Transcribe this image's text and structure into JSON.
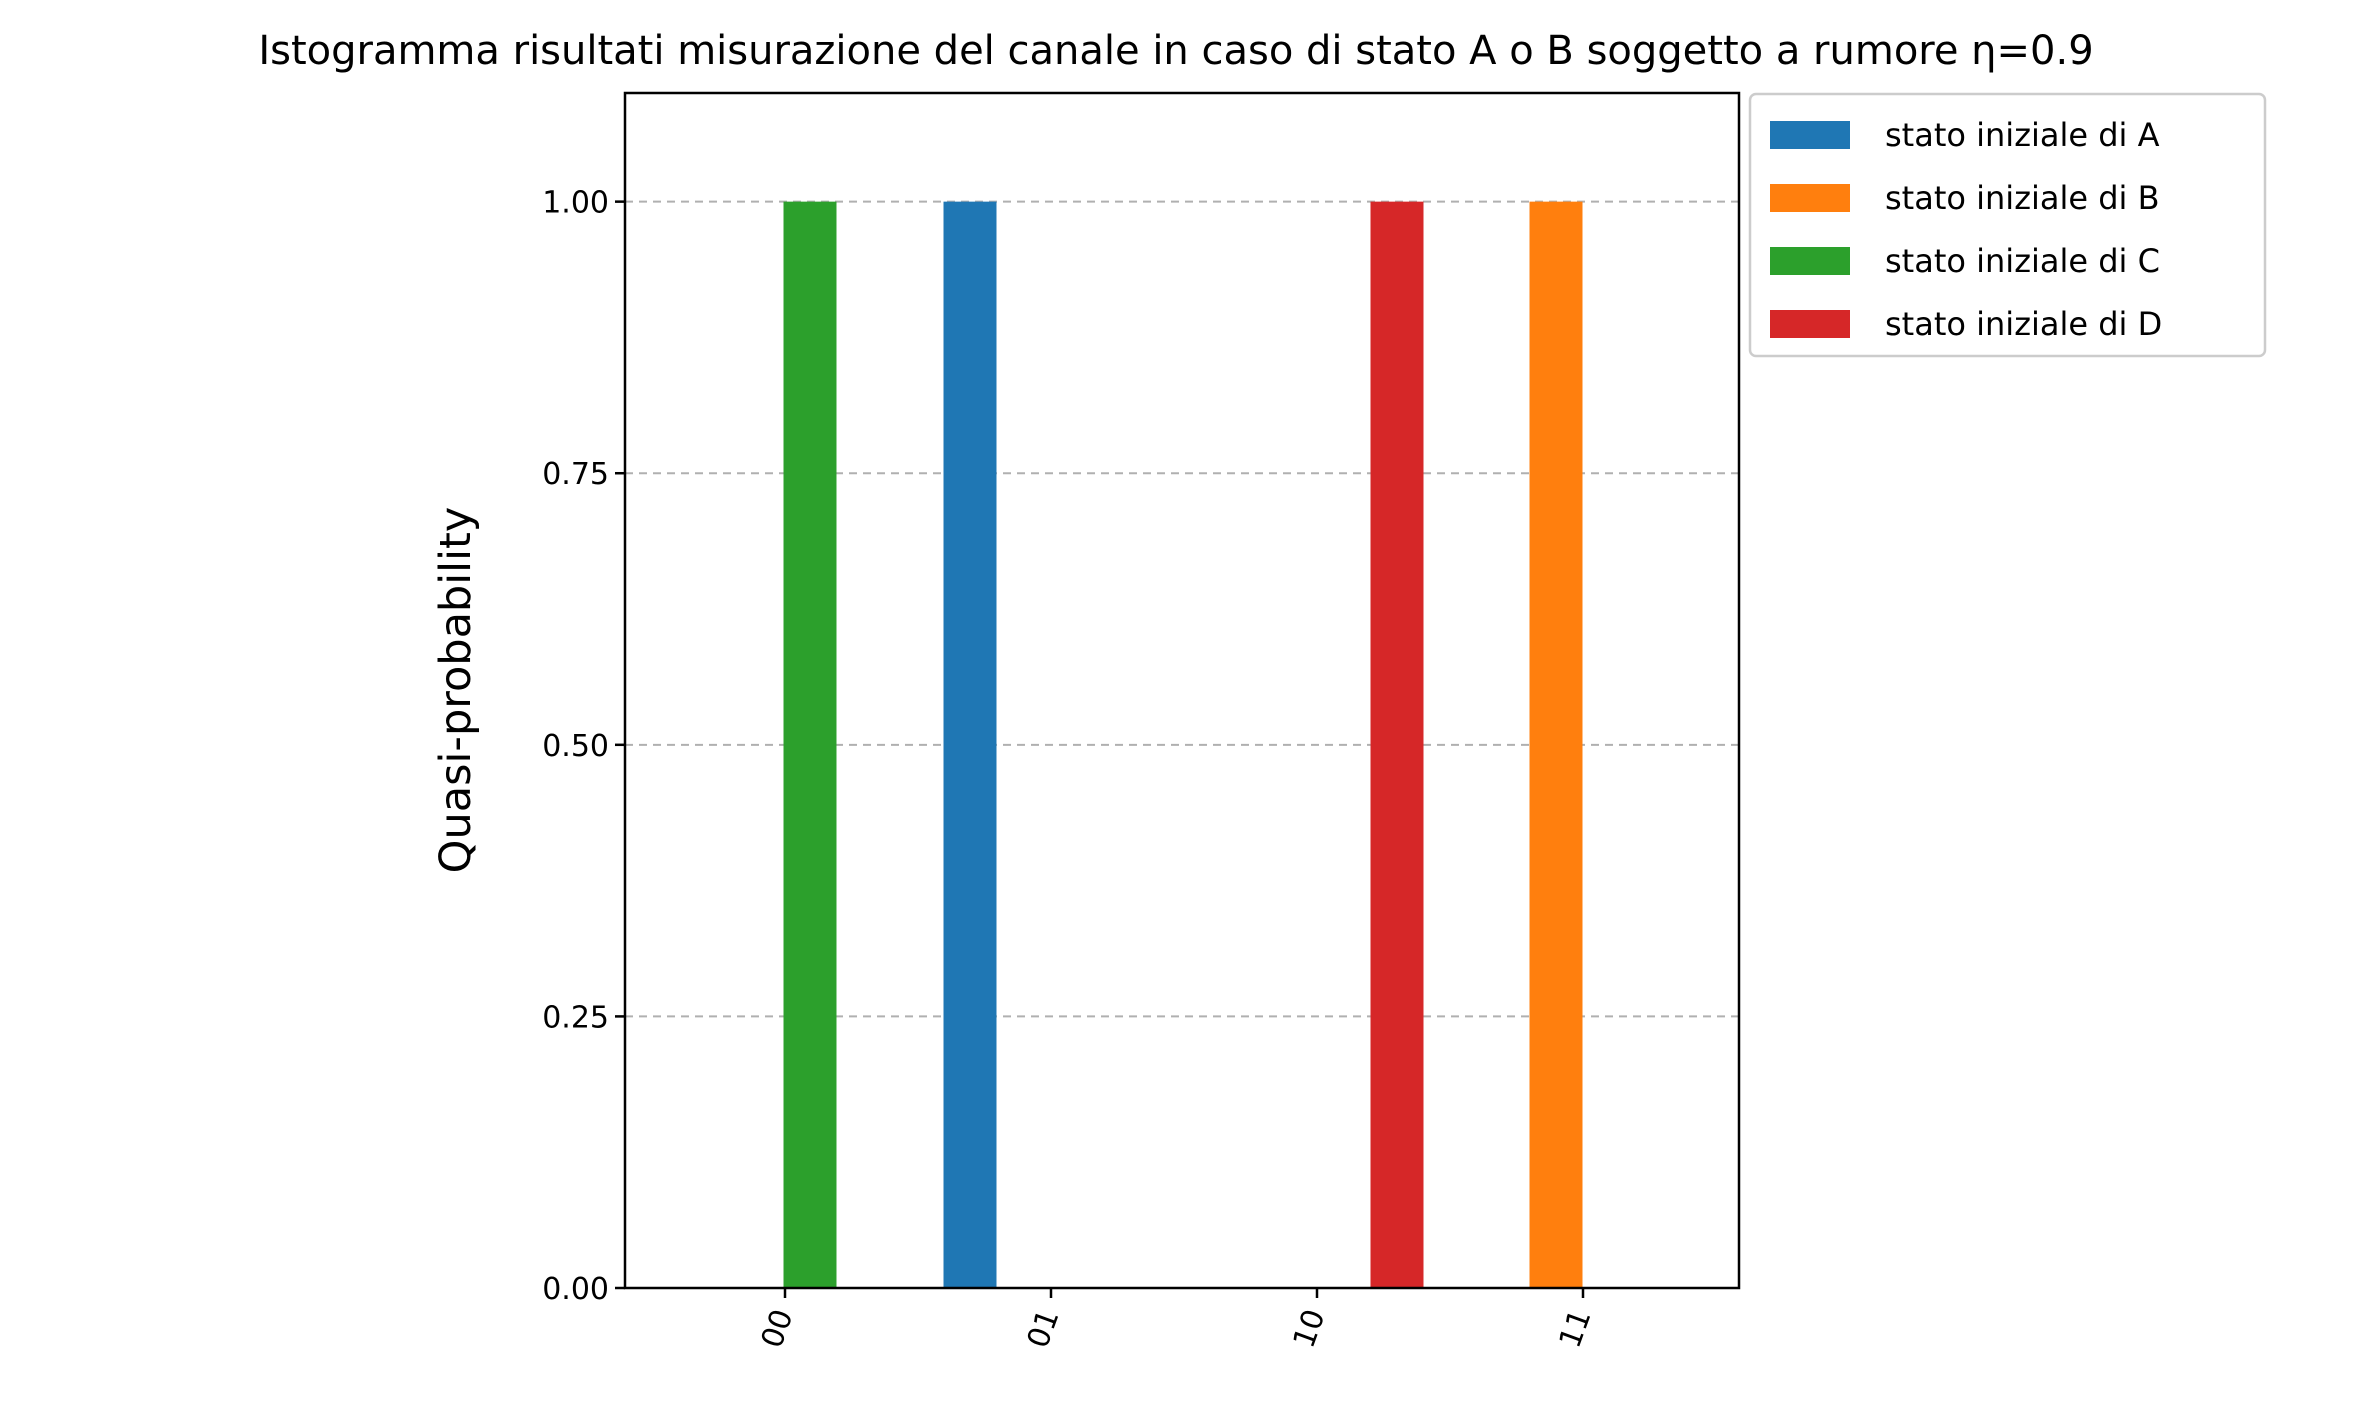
{
  "chart_data": {
    "type": "bar",
    "title": "Istogramma risultati misurazione del canale in caso di stato A o B soggetto a rumore η=0.9",
    "xlabel": "",
    "ylabel": "Quasi-probability",
    "categories": [
      "00",
      "01",
      "10",
      "11"
    ],
    "ylim": [
      0,
      1.1
    ],
    "yticks": [
      "0.00",
      "0.25",
      "0.50",
      "0.75",
      "1.00"
    ],
    "grid": "horizontal dashed",
    "legend_position": "outside top-right",
    "series": [
      {
        "name": "stato iniziale di A",
        "color": "#1f77b4",
        "values": [
          0,
          1.0,
          0,
          0
        ]
      },
      {
        "name": "stato iniziale di B",
        "color": "#ff7f0e",
        "values": [
          0,
          0,
          0,
          1.0
        ]
      },
      {
        "name": "stato iniziale di C",
        "color": "#2ca02c",
        "values": [
          1.0,
          0,
          0,
          0
        ]
      },
      {
        "name": "stato iniziale di D",
        "color": "#d62728",
        "values": [
          0,
          0,
          1.0,
          0
        ]
      }
    ]
  }
}
